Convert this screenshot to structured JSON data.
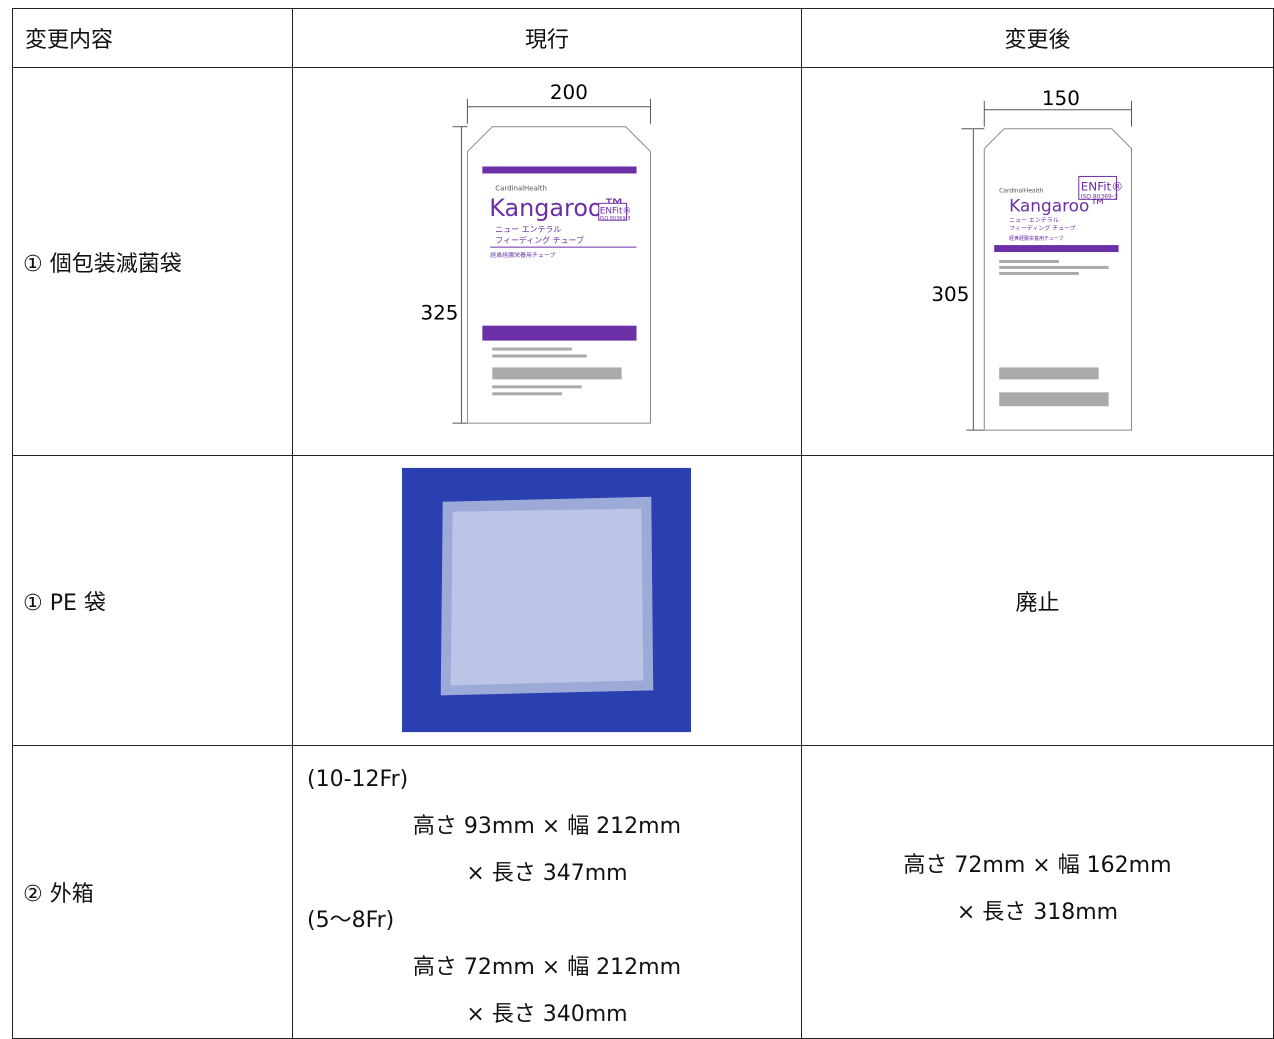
{
  "table": {
    "header": [
      "変更内容",
      "現行",
      "変更後"
    ],
    "rows": [
      {
        "item": "① 個包装滅菌袋",
        "current": {
          "width": "200",
          "height": "325",
          "brand": "CardinalHealth",
          "product": "Kangaroo™",
          "connector": "ENFit®",
          "standard": "ISO 80369-3",
          "name_line1": "ニュー エンテラル",
          "name_line2": "フィーディング チューブ",
          "subtitle": "経鼻経腸栄養用チューブ"
        },
        "after": {
          "width": "150",
          "height": "305",
          "brand": "CardinalHealth",
          "product": "Kangaroo™",
          "connector": "ENFit®",
          "standard": "ISO 80369-3",
          "name_line1": "ニュー エンテラル",
          "name_line2": "フィーディング チューブ",
          "subtitle": "経鼻経腸栄養用チューブ"
        }
      },
      {
        "item": "① PE 袋",
        "after": "廃止"
      },
      {
        "item": "② 外箱",
        "current": [
          "(10-12Fr)",
          "高さ 93mm × 幅 212mm",
          "× 長さ 347mm",
          "(5～8Fr)",
          "高さ 72mm × 幅 212mm",
          "× 長さ 340mm"
        ],
        "after": [
          "高さ 72mm × 幅 162mm",
          "× 長さ 318mm"
        ]
      }
    ]
  }
}
